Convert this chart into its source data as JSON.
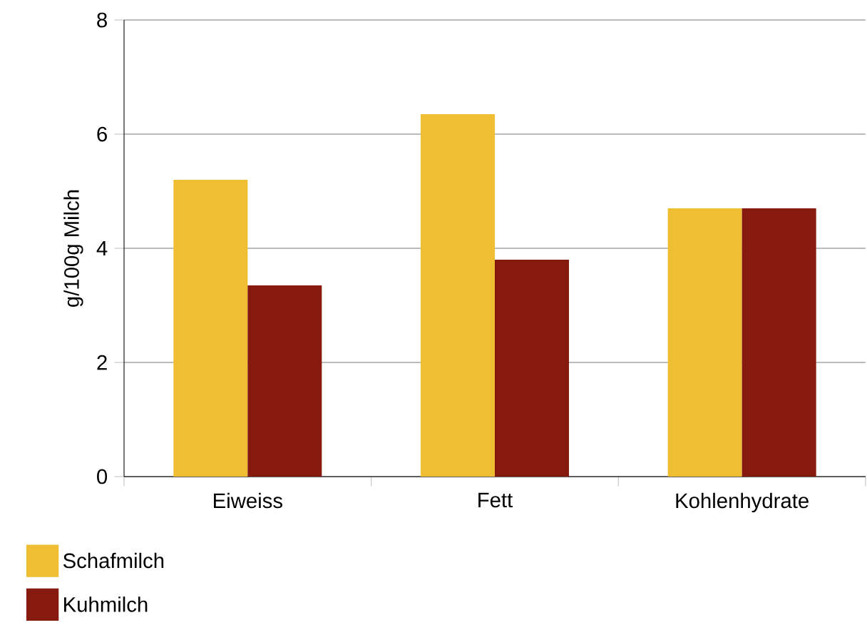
{
  "chart_data": {
    "type": "bar",
    "ylabel": "g/100g Milch",
    "categories": [
      "Eiweiss",
      "Fett",
      "Kohlenhydrate"
    ],
    "series": [
      {
        "name": "Schafmilch",
        "color": "#f0be32",
        "values": [
          5.2,
          6.35,
          4.7
        ]
      },
      {
        "name": "Kuhmilch",
        "color": "#861a0e",
        "values": [
          3.35,
          3.8,
          4.7
        ]
      }
    ],
    "ylim": [
      0,
      8
    ],
    "yticks": [
      0,
      2,
      4,
      6,
      8
    ],
    "grid": "y",
    "legend": "bottom left"
  }
}
